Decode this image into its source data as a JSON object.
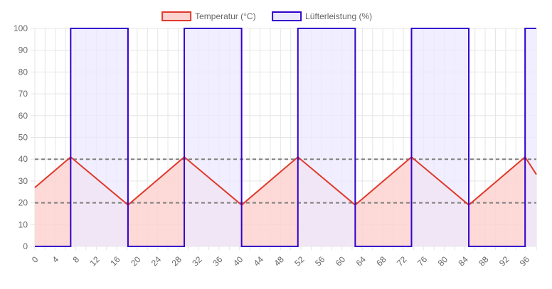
{
  "chart_data": {
    "type": "line",
    "title": "",
    "xlabel": "",
    "ylabel": "",
    "legend_position": "top",
    "grid": true,
    "ylim": [
      0,
      100
    ],
    "xlim": [
      0,
      98
    ],
    "y_ticks": [
      "0",
      "10",
      "20",
      "30",
      "40",
      "50",
      "60",
      "70",
      "80",
      "90",
      "100"
    ],
    "x_ticks": [
      "0",
      "4",
      "8",
      "12",
      "16",
      "20",
      "24",
      "28",
      "32",
      "36",
      "40",
      "44",
      "48",
      "52",
      "56",
      "60",
      "64",
      "68",
      "72",
      "76",
      "80",
      "84",
      "88",
      "92",
      "96"
    ],
    "thresholds": [
      {
        "value": 40,
        "color": "#808080",
        "style": "dashed"
      },
      {
        "value": 20,
        "color": "#808080",
        "style": "dashed"
      }
    ],
    "series": [
      {
        "name": "Temperatur (°C)",
        "color": "#e0392b",
        "fill": "#fdd3d0",
        "step": false,
        "x": [
          0,
          7,
          18.2,
          29.2,
          40.4,
          51.4,
          62.6,
          73.6,
          84.8,
          95.8,
          98
        ],
        "values": [
          27,
          41,
          19,
          41,
          19,
          41,
          19,
          41,
          19,
          41,
          33
        ]
      },
      {
        "name": "Lüfterleistung (%)",
        "color": "#3300cc",
        "fill": "#ece9ff",
        "step": true,
        "x": [
          0,
          7,
          7,
          18.2,
          18.2,
          29.2,
          29.2,
          40.4,
          40.4,
          51.4,
          51.4,
          62.6,
          62.6,
          73.6,
          73.6,
          84.8,
          84.8,
          95.8,
          95.8,
          98
        ],
        "values": [
          0,
          0,
          100,
          100,
          0,
          0,
          100,
          100,
          0,
          0,
          100,
          100,
          0,
          0,
          100,
          100,
          0,
          0,
          100,
          100
        ]
      }
    ]
  }
}
